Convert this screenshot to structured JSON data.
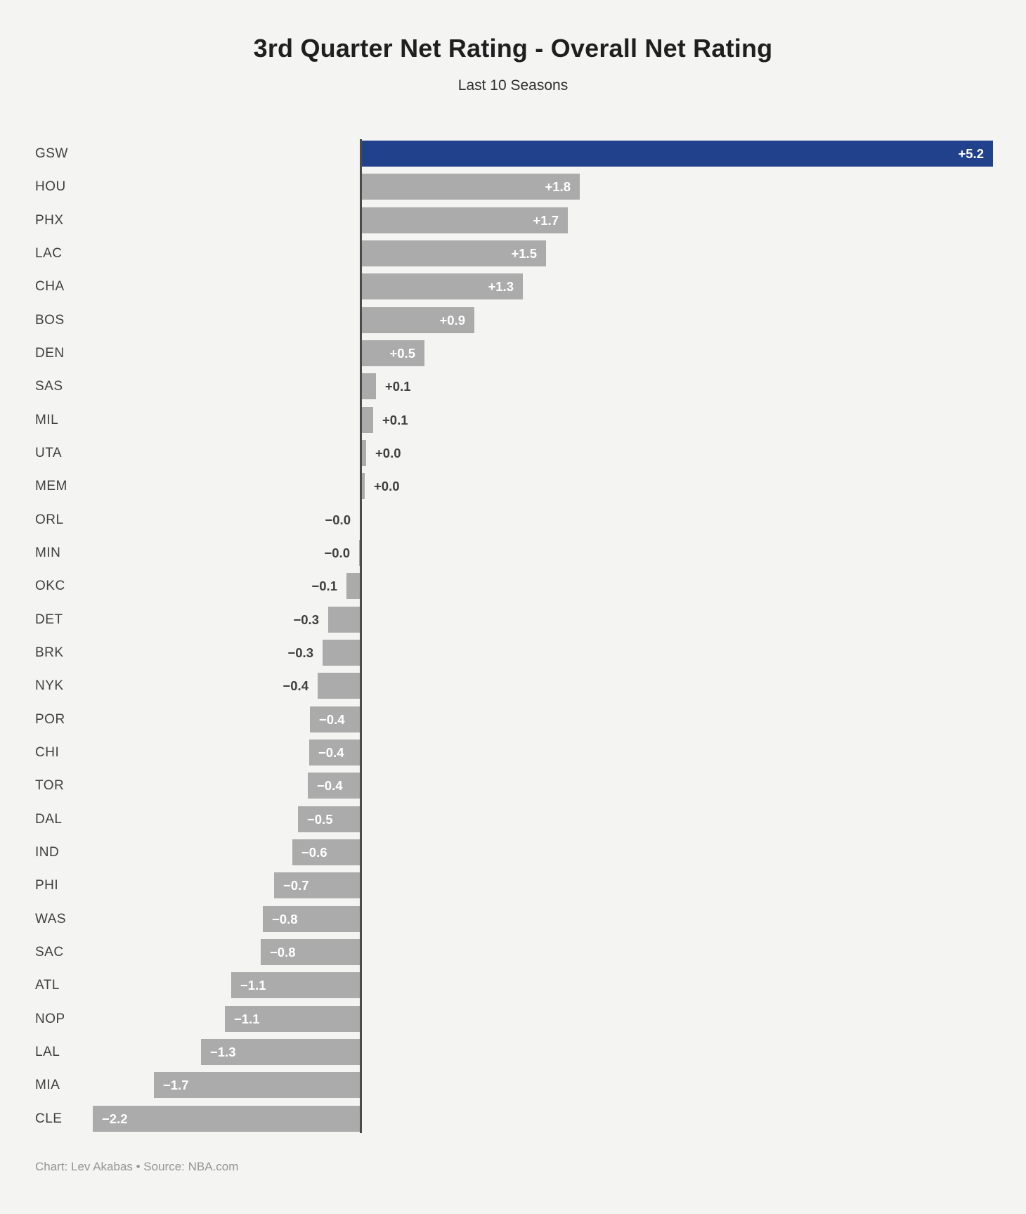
{
  "header": {
    "title": "3rd Quarter Net Rating - Overall Net Rating",
    "subtitle": "Last 10 Seasons"
  },
  "footer": {
    "credit": "Chart: Lev Akabas • Source: NBA.com"
  },
  "colors": {
    "background": "#f4f4f2",
    "highlight_bar": "#21418d",
    "default_bar": "#ababab",
    "axis": "#4b4b4b",
    "inside_label": "#ffffff",
    "outside_label": "#3f3f3f"
  },
  "chart_data": {
    "type": "bar",
    "orientation": "horizontal",
    "title": "3rd Quarter Net Rating - Overall Net Rating",
    "subtitle": "Last 10 Seasons",
    "xlim": [
      -2.8,
      5.6
    ],
    "zero_axis": true,
    "grid": false,
    "legend": "none",
    "categories": [
      "GSW",
      "HOU",
      "PHX",
      "LAC",
      "CHA",
      "BOS",
      "DEN",
      "SAS",
      "MIL",
      "UTA",
      "MEM",
      "ORL",
      "MIN",
      "OKC",
      "DET",
      "BRK",
      "NYK",
      "POR",
      "CHI",
      "TOR",
      "DAL",
      "IND",
      "PHI",
      "WAS",
      "SAC",
      "ATL",
      "NOP",
      "LAL",
      "MIA",
      "CLE"
    ],
    "values": [
      5.2,
      1.8,
      1.7,
      1.5,
      1.3,
      0.9,
      0.5,
      0.1,
      0.1,
      0.0,
      0.0,
      -0.0,
      -0.0,
      -0.1,
      -0.3,
      -0.3,
      -0.4,
      -0.4,
      -0.4,
      -0.4,
      -0.5,
      -0.6,
      -0.7,
      -0.8,
      -0.8,
      -1.1,
      -1.1,
      -1.3,
      -1.7,
      -2.2
    ],
    "bars": [
      {
        "team": "GSW",
        "label": "+5.2",
        "value": 5.2,
        "value_est": 5.2,
        "label_pos": "inside",
        "color": "highlight"
      },
      {
        "team": "HOU",
        "label": "+1.8",
        "value": 1.8,
        "value_est": 1.8,
        "label_pos": "inside",
        "color": "default"
      },
      {
        "team": "PHX",
        "label": "+1.7",
        "value": 1.7,
        "value_est": 1.7,
        "label_pos": "inside",
        "color": "default"
      },
      {
        "team": "LAC",
        "label": "+1.5",
        "value": 1.5,
        "value_est": 1.52,
        "label_pos": "inside",
        "color": "default"
      },
      {
        "team": "CHA",
        "label": "+1.3",
        "value": 1.3,
        "value_est": 1.33,
        "label_pos": "inside",
        "color": "default"
      },
      {
        "team": "BOS",
        "label": "+0.9",
        "value": 0.9,
        "value_est": 0.93,
        "label_pos": "inside",
        "color": "default"
      },
      {
        "team": "DEN",
        "label": "+0.5",
        "value": 0.5,
        "value_est": 0.52,
        "label_pos": "inside",
        "color": "default"
      },
      {
        "team": "SAS",
        "label": "+0.1",
        "value": 0.1,
        "value_est": 0.12,
        "label_pos": "outside",
        "color": "default"
      },
      {
        "team": "MIL",
        "label": "+0.1",
        "value": 0.1,
        "value_est": 0.1,
        "label_pos": "outside",
        "color": "default"
      },
      {
        "team": "UTA",
        "label": "+0.0",
        "value": 0.0,
        "value_est": 0.04,
        "label_pos": "outside",
        "color": "default"
      },
      {
        "team": "MEM",
        "label": "+0.0",
        "value": 0.0,
        "value_est": 0.03,
        "label_pos": "outside",
        "color": "default"
      },
      {
        "team": "ORL",
        "label": "−0.0",
        "value": -0.0,
        "value_est": -0.01,
        "label_pos": "outside",
        "color": "default"
      },
      {
        "team": "MIN",
        "label": "−0.0",
        "value": -0.0,
        "value_est": -0.02,
        "label_pos": "outside",
        "color": "default"
      },
      {
        "team": "OKC",
        "label": "−0.1",
        "value": -0.1,
        "value_est": -0.12,
        "label_pos": "outside",
        "color": "default"
      },
      {
        "team": "DET",
        "label": "−0.3",
        "value": -0.3,
        "value_est": -0.27,
        "label_pos": "outside",
        "color": "default"
      },
      {
        "team": "BRK",
        "label": "−0.3",
        "value": -0.3,
        "value_est": -0.32,
        "label_pos": "outside",
        "color": "default"
      },
      {
        "team": "NYK",
        "label": "−0.4",
        "value": -0.4,
        "value_est": -0.36,
        "label_pos": "outside",
        "color": "default"
      },
      {
        "team": "POR",
        "label": "−0.4",
        "value": -0.4,
        "value_est": -0.42,
        "label_pos": "inside",
        "color": "default"
      },
      {
        "team": "CHI",
        "label": "−0.4",
        "value": -0.4,
        "value_est": -0.43,
        "label_pos": "inside",
        "color": "default"
      },
      {
        "team": "TOR",
        "label": "−0.4",
        "value": -0.4,
        "value_est": -0.44,
        "label_pos": "inside",
        "color": "default"
      },
      {
        "team": "DAL",
        "label": "−0.5",
        "value": -0.5,
        "value_est": -0.52,
        "label_pos": "inside",
        "color": "default"
      },
      {
        "team": "IND",
        "label": "−0.6",
        "value": -0.6,
        "value_est": -0.57,
        "label_pos": "inside",
        "color": "default"
      },
      {
        "team": "PHI",
        "label": "−0.7",
        "value": -0.7,
        "value_est": -0.72,
        "label_pos": "inside",
        "color": "default"
      },
      {
        "team": "WAS",
        "label": "−0.8",
        "value": -0.8,
        "value_est": -0.81,
        "label_pos": "inside",
        "color": "default"
      },
      {
        "team": "SAC",
        "label": "−0.8",
        "value": -0.8,
        "value_est": -0.83,
        "label_pos": "inside",
        "color": "default"
      },
      {
        "team": "ATL",
        "label": "−1.1",
        "value": -1.1,
        "value_est": -1.07,
        "label_pos": "inside",
        "color": "default"
      },
      {
        "team": "NOP",
        "label": "−1.1",
        "value": -1.1,
        "value_est": -1.12,
        "label_pos": "inside",
        "color": "default"
      },
      {
        "team": "LAL",
        "label": "−1.3",
        "value": -1.3,
        "value_est": -1.32,
        "label_pos": "inside",
        "color": "default"
      },
      {
        "team": "MIA",
        "label": "−1.7",
        "value": -1.7,
        "value_est": -1.71,
        "label_pos": "inside",
        "color": "default"
      },
      {
        "team": "CLE",
        "label": "−2.2",
        "value": -2.2,
        "value_est": -2.21,
        "label_pos": "inside",
        "color": "default"
      }
    ]
  }
}
